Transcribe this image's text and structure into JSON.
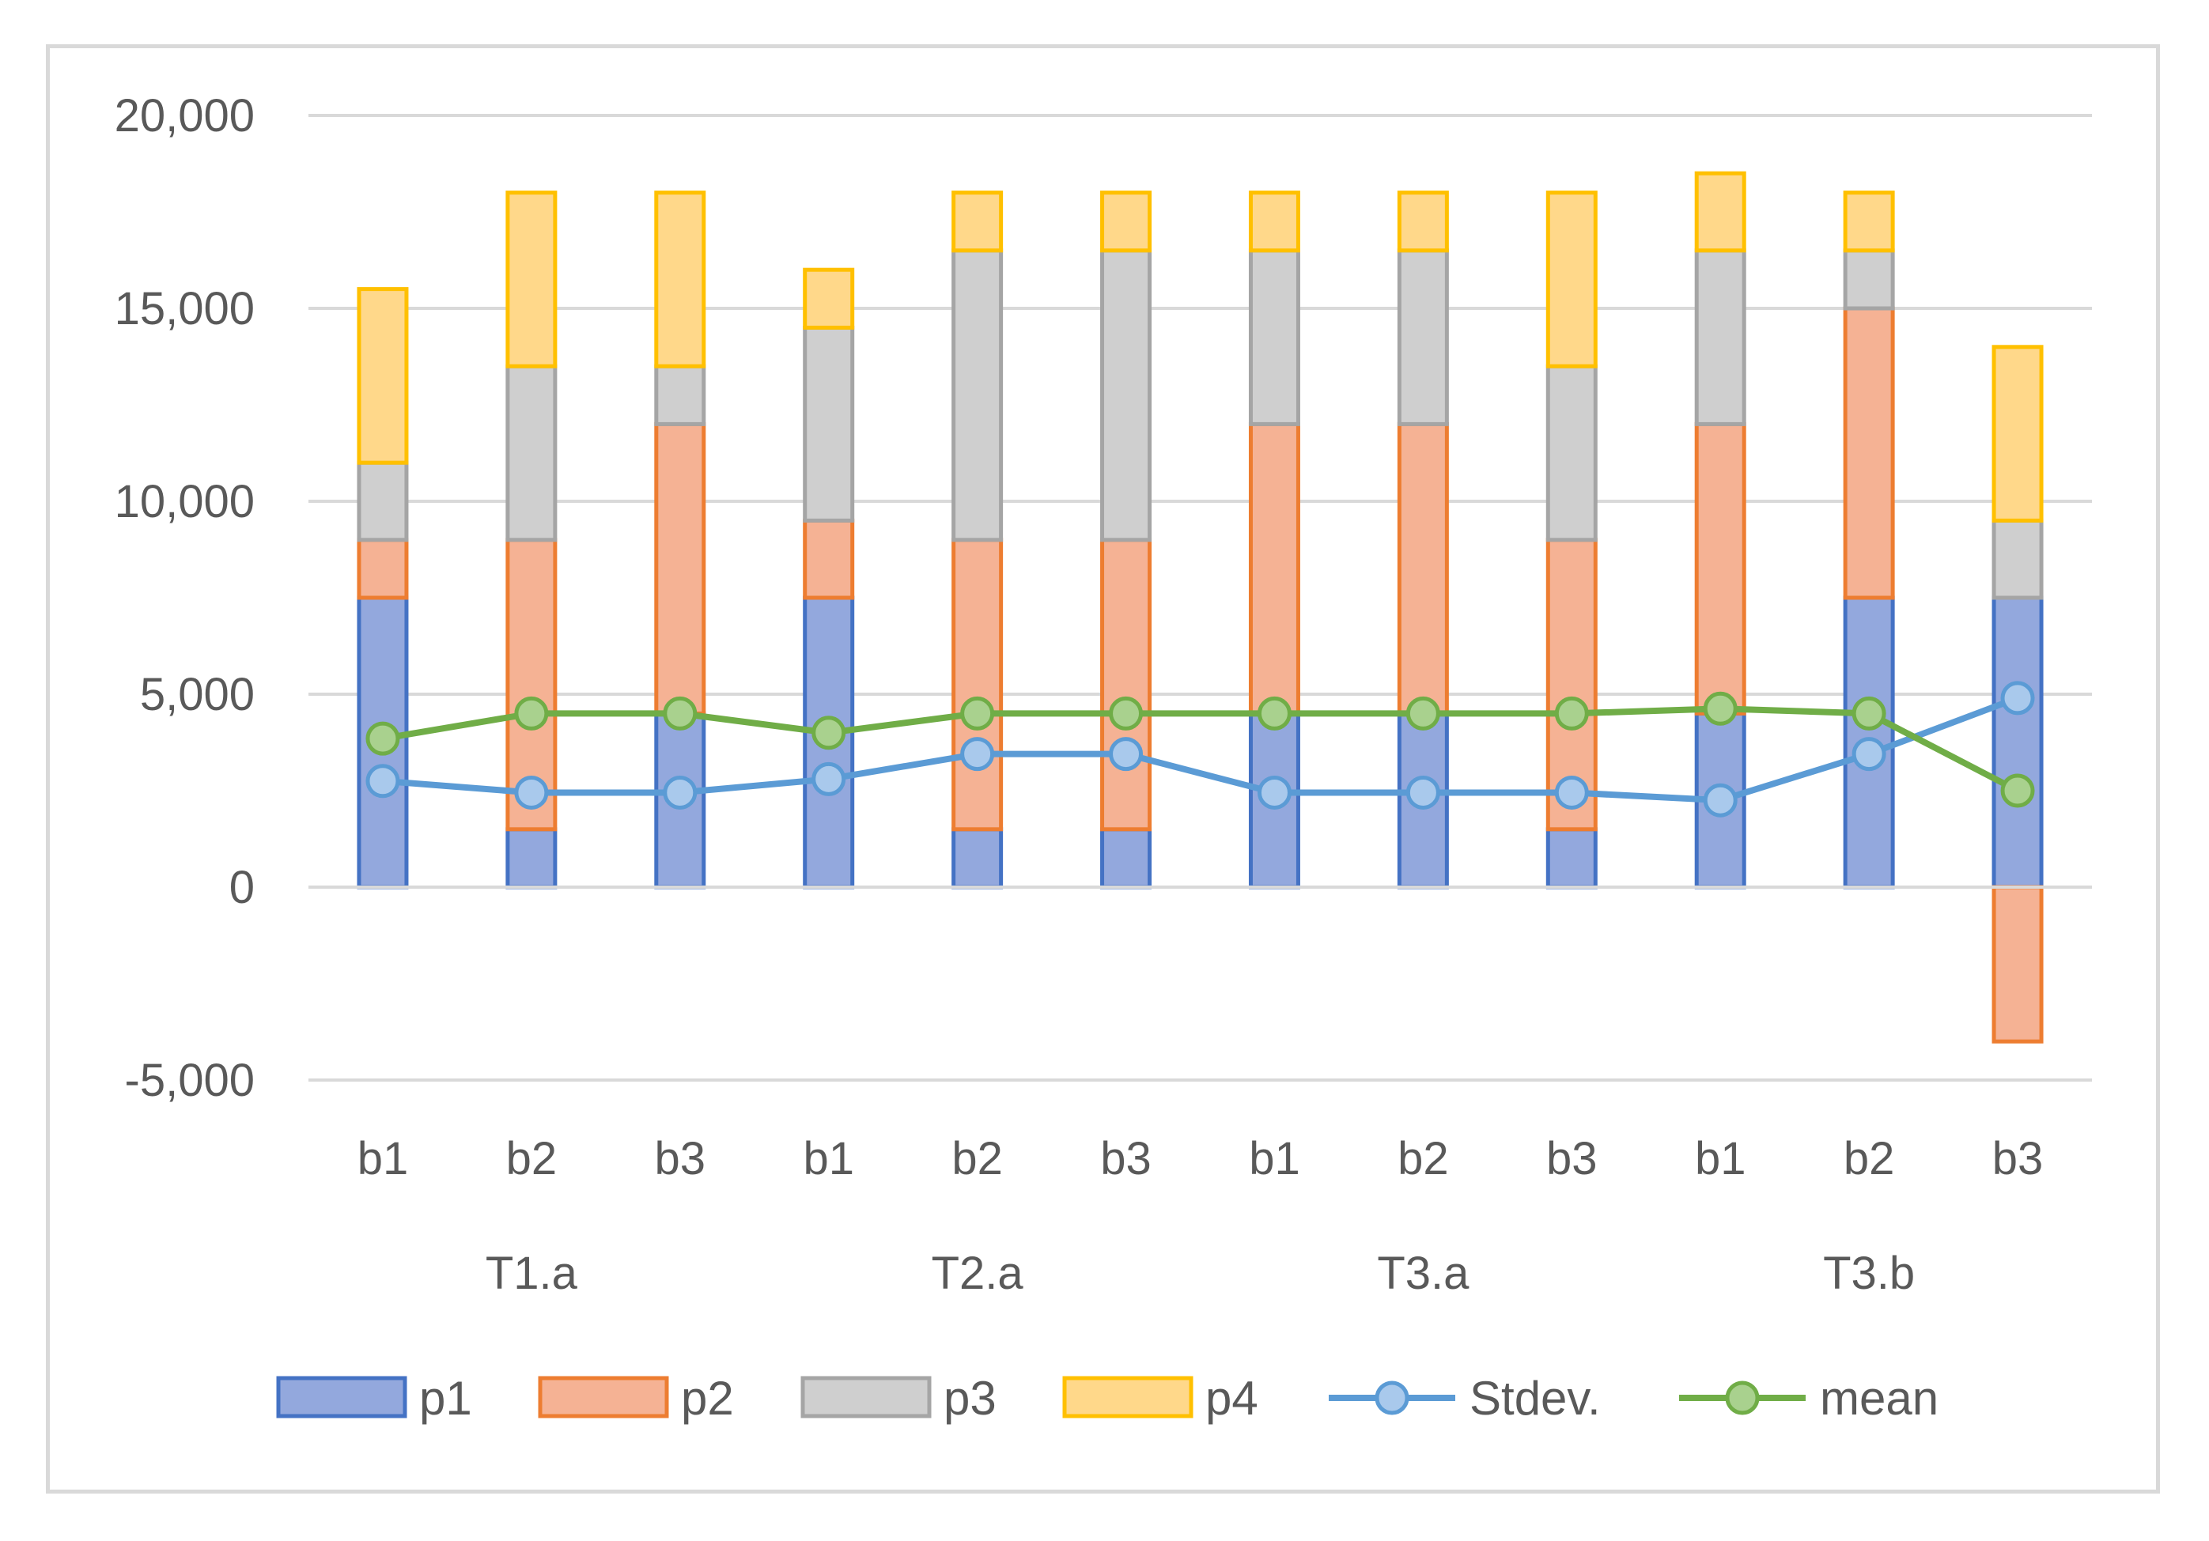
{
  "chart_data": {
    "type": "bar",
    "stacked": true,
    "title": "",
    "xlabel": "",
    "ylabel": "",
    "ylim": [
      -5000,
      20000
    ],
    "yticks": [
      -5000,
      0,
      5000,
      10000,
      15000,
      20000
    ],
    "ytick_labels": [
      "-5,000",
      "0",
      "5,000",
      "10,000",
      "15,000",
      "20,000"
    ],
    "grid": true,
    "categories": [
      "b1",
      "b2",
      "b3",
      "b1",
      "b2",
      "b3",
      "b1",
      "b2",
      "b3",
      "b1",
      "b2",
      "b3"
    ],
    "groups": [
      {
        "label": "T1.a",
        "span": 3
      },
      {
        "label": "T2.a",
        "span": 3
      },
      {
        "label": "T3.a",
        "span": 3
      },
      {
        "label": "T3.b",
        "span": 3
      }
    ],
    "series": [
      {
        "name": "p1",
        "kind": "bar",
        "fill": "#93a8dd",
        "stroke": "#4472c4",
        "values": [
          7500,
          1500,
          4500,
          7500,
          1500,
          1500,
          4500,
          4500,
          1500,
          4500,
          7500,
          7500
        ]
      },
      {
        "name": "p2",
        "kind": "bar",
        "fill": "#f5b294",
        "stroke": "#ed7d31",
        "values": [
          1500,
          7500,
          7500,
          2000,
          7500,
          7500,
          7500,
          7500,
          7500,
          7500,
          7500,
          -4000
        ]
      },
      {
        "name": "p3",
        "kind": "bar",
        "fill": "#cfcfcf",
        "stroke": "#a5a5a5",
        "values": [
          2000,
          4500,
          1500,
          5000,
          7500,
          7500,
          4500,
          4500,
          4500,
          4500,
          1500,
          2000
        ]
      },
      {
        "name": "p4",
        "kind": "bar",
        "fill": "#ffd88a",
        "stroke": "#ffc000",
        "values": [
          4500,
          4500,
          4500,
          1500,
          1500,
          1500,
          1500,
          1500,
          4500,
          2000,
          1500,
          4500
        ]
      },
      {
        "name": "Stdev.",
        "kind": "line",
        "color": "#5b9bd5",
        "marker_fill": "#a9c9ec",
        "values": [
          2750,
          2450,
          2450,
          2800,
          3450,
          3450,
          2450,
          2450,
          2450,
          2250,
          3450,
          4900
        ]
      },
      {
        "name": "mean",
        "kind": "line",
        "color": "#70ad47",
        "marker_fill": "#a9d18e",
        "values": [
          3850,
          4500,
          4500,
          4000,
          4500,
          4500,
          4500,
          4500,
          4500,
          4625,
          4500,
          2500
        ]
      }
    ],
    "legend": "bottom"
  }
}
